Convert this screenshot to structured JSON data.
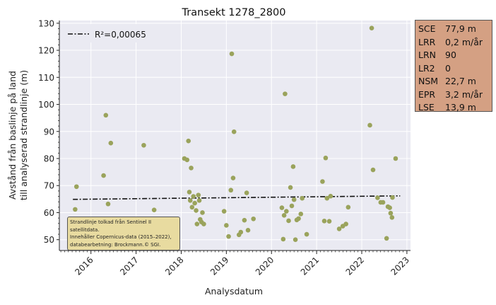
{
  "chart_data": {
    "type": "scatter",
    "title": "Transekt 1278_2800",
    "xlabel": "Analysdatum",
    "ylabel": [
      "Avstånd från baslinje på land",
      "till analyserad strandlinje (m)"
    ],
    "xlim": [
      2015.3,
      2023.08
    ],
    "ylim": [
      46,
      131
    ],
    "x_ticks": [
      "2016",
      "2017",
      "2018",
      "2019",
      "2020",
      "2021",
      "2022",
      "2023"
    ],
    "y_ticks": [
      50,
      60,
      70,
      80,
      90,
      100,
      110,
      120,
      130
    ],
    "grid": true,
    "legend": {
      "label": "R²=0,00065",
      "placement": "top-left"
    },
    "trend_line": {
      "x": [
        2015.6,
        2022.85
      ],
      "y": [
        64.9,
        66.2
      ]
    },
    "point_color": "#9aa35c",
    "series": [
      {
        "values": [
          [
            2015.62,
            57.0
          ],
          [
            2015.65,
            61.2
          ],
          [
            2015.68,
            69.6
          ],
          [
            2016.28,
            73.7
          ],
          [
            2016.33,
            96.0
          ],
          [
            2016.38,
            63.2
          ],
          [
            2016.44,
            85.7
          ],
          [
            2017.17,
            84.9
          ],
          [
            2017.4,
            61.0
          ],
          [
            2018.07,
            80.0
          ],
          [
            2018.13,
            79.5
          ],
          [
            2018.16,
            86.5
          ],
          [
            2018.18,
            67.6
          ],
          [
            2018.2,
            64.5
          ],
          [
            2018.22,
            76.5
          ],
          [
            2018.24,
            62.0
          ],
          [
            2018.27,
            66.0
          ],
          [
            2018.3,
            63.5
          ],
          [
            2018.33,
            60.8
          ],
          [
            2018.35,
            55.8
          ],
          [
            2018.38,
            66.5
          ],
          [
            2018.4,
            64.5
          ],
          [
            2018.42,
            57.5
          ],
          [
            2018.45,
            56.5
          ],
          [
            2018.47,
            60.0
          ],
          [
            2018.5,
            55.8
          ],
          [
            2018.95,
            60.5
          ],
          [
            2019.0,
            55.3
          ],
          [
            2019.05,
            51.2
          ],
          [
            2019.1,
            68.3
          ],
          [
            2019.12,
            118.7
          ],
          [
            2019.15,
            72.8
          ],
          [
            2019.17,
            89.9
          ],
          [
            2019.28,
            51.8
          ],
          [
            2019.32,
            52.8
          ],
          [
            2019.4,
            57.2
          ],
          [
            2019.45,
            67.3
          ],
          [
            2019.48,
            53.5
          ],
          [
            2019.6,
            57.7
          ],
          [
            2020.23,
            61.8
          ],
          [
            2020.26,
            50.2
          ],
          [
            2020.28,
            59.0
          ],
          [
            2020.3,
            103.9
          ],
          [
            2020.33,
            60.5
          ],
          [
            2020.38,
            57.0
          ],
          [
            2020.42,
            69.3
          ],
          [
            2020.45,
            62.5
          ],
          [
            2020.48,
            77.0
          ],
          [
            2020.5,
            64.8
          ],
          [
            2020.53,
            50.0
          ],
          [
            2020.56,
            57.3
          ],
          [
            2020.6,
            57.8
          ],
          [
            2020.65,
            59.5
          ],
          [
            2020.68,
            65.3
          ],
          [
            2020.78,
            52.0
          ],
          [
            2021.13,
            71.5
          ],
          [
            2021.17,
            56.9
          ],
          [
            2021.2,
            80.2
          ],
          [
            2021.23,
            65.3
          ],
          [
            2021.28,
            56.8
          ],
          [
            2021.31,
            66.1
          ],
          [
            2021.5,
            54.0
          ],
          [
            2021.58,
            55.0
          ],
          [
            2021.65,
            55.8
          ],
          [
            2021.7,
            62.0
          ],
          [
            2022.18,
            92.3
          ],
          [
            2022.22,
            128.2
          ],
          [
            2022.25,
            75.8
          ],
          [
            2022.35,
            65.5
          ],
          [
            2022.42,
            63.8
          ],
          [
            2022.47,
            63.8
          ],
          [
            2022.55,
            50.5
          ],
          [
            2022.58,
            62.2
          ],
          [
            2022.62,
            61.8
          ],
          [
            2022.64,
            59.8
          ],
          [
            2022.68,
            65.6
          ],
          [
            2022.67,
            58.2
          ],
          [
            2022.75,
            80.0
          ]
        ]
      }
    ]
  },
  "stats": [
    {
      "key": "SCE",
      "value": "77,9 m"
    },
    {
      "key": "LRR",
      "value": "0,2 m/år"
    },
    {
      "key": "LRN",
      "value": "90"
    },
    {
      "key": "LR2",
      "value": "0"
    },
    {
      "key": "NSM",
      "value": "22,7 m"
    },
    {
      "key": "EPR",
      "value": "3,2 m/år"
    },
    {
      "key": "LSE",
      "value": "13,9 m"
    }
  ],
  "attribution": "Strandlinje tolkad från Sentinel II satellitdata.\nInnehåller Copernicus-data (2015–2022),\ndatabearbetning: Brockmann.© SGI."
}
